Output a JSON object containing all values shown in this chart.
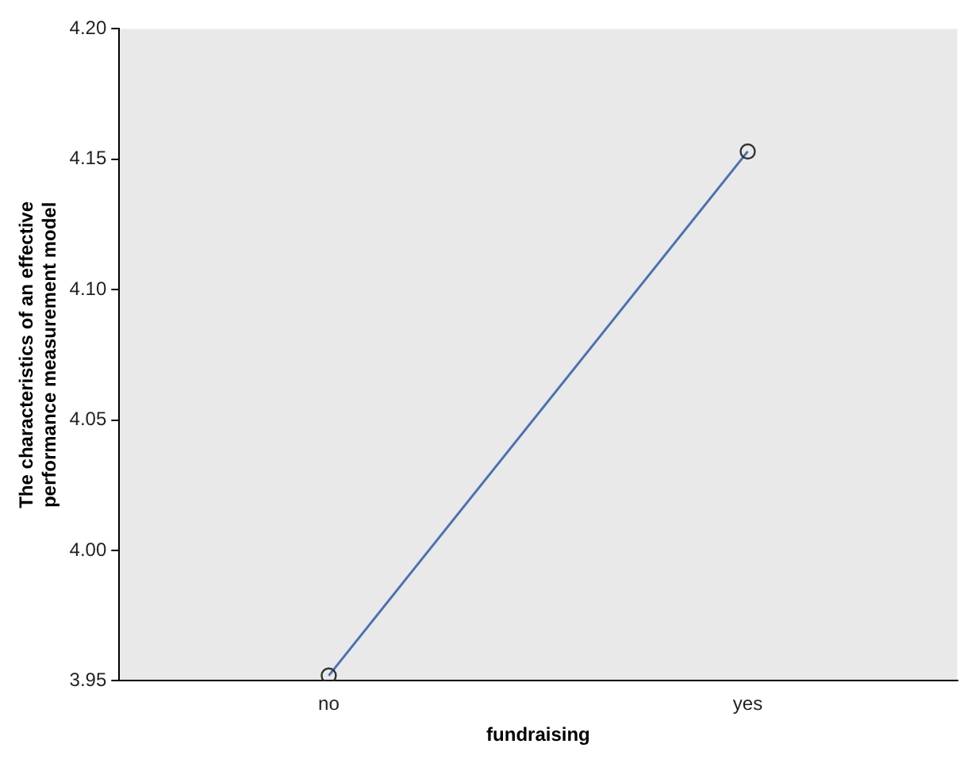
{
  "chart_data": {
    "type": "line",
    "xlabel": "fundraising",
    "ylabel": "The characteristics of an effective performance measurement model",
    "categories": [
      "no",
      "yes"
    ],
    "series": [
      {
        "color": "#4a72b4",
        "values": [
          3.952,
          4.153
        ]
      }
    ],
    "ylim": [
      3.95,
      4.2
    ],
    "yticks": [
      {
        "value": 3.95,
        "label": "3.95"
      },
      {
        "value": 4.0,
        "label": "4.00"
      },
      {
        "value": 4.05,
        "label": "4.05"
      },
      {
        "value": 4.1,
        "label": "4.10"
      },
      {
        "value": 4.15,
        "label": "4.15"
      },
      {
        "value": 4.2,
        "label": "4.20"
      }
    ],
    "grid": false,
    "legend": false,
    "marker": "circle",
    "line_style": "solid"
  }
}
